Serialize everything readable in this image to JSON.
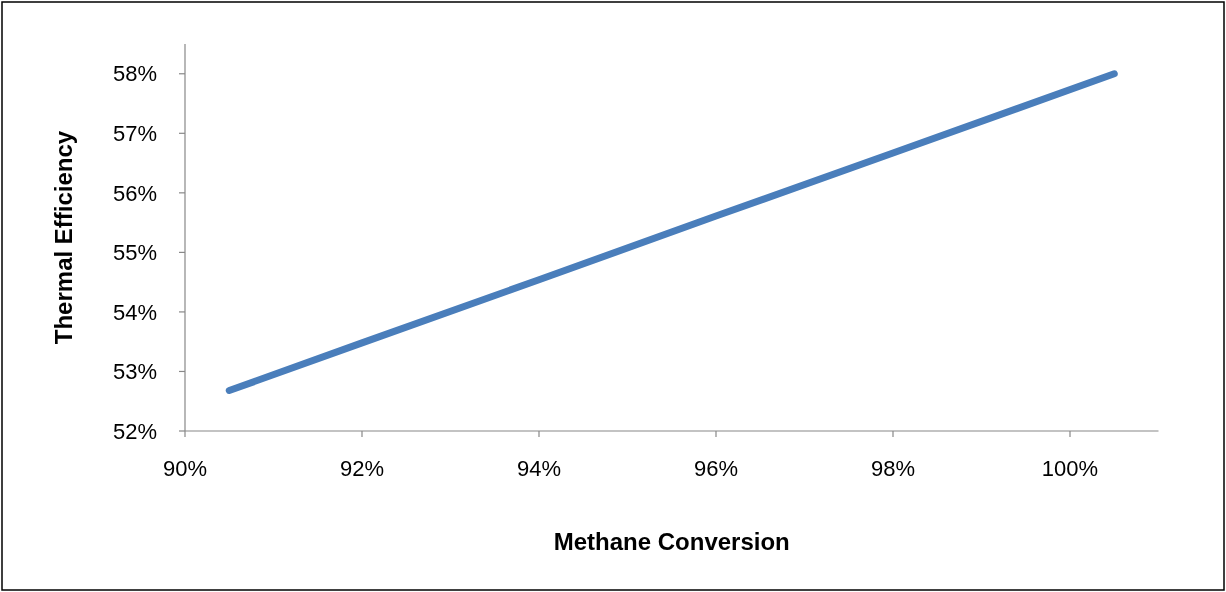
{
  "chart_data": {
    "type": "line",
    "xlabel": "Methane Conversion",
    "ylabel": "Thermal Efficiency",
    "x": [
      90.5,
      92,
      94,
      96,
      98,
      100.5
    ],
    "series": [
      {
        "color": "#4a7ebb",
        "values": [
          52.68,
          53.48,
          54.54,
          55.61,
          56.67,
          58.0
        ]
      }
    ],
    "xlim": [
      90,
      101
    ],
    "xticks": [
      {
        "value": 90,
        "label": "90%"
      },
      {
        "value": 92,
        "label": "92%"
      },
      {
        "value": 94,
        "label": "94%"
      },
      {
        "value": 96,
        "label": "96%"
      },
      {
        "value": 98,
        "label": "98%"
      },
      {
        "value": 100,
        "label": "100%"
      }
    ],
    "ylim": [
      52,
      58.5
    ],
    "yticks": [
      {
        "value": 52,
        "label": "52%"
      },
      {
        "value": 53,
        "label": "53%"
      },
      {
        "value": 54,
        "label": "54%"
      },
      {
        "value": 55,
        "label": "55%"
      },
      {
        "value": 56,
        "label": "56%"
      },
      {
        "value": 57,
        "label": "57%"
      },
      {
        "value": 58,
        "label": "58%"
      }
    ],
    "grid": false,
    "marker": "none",
    "line_style": "solid"
  }
}
